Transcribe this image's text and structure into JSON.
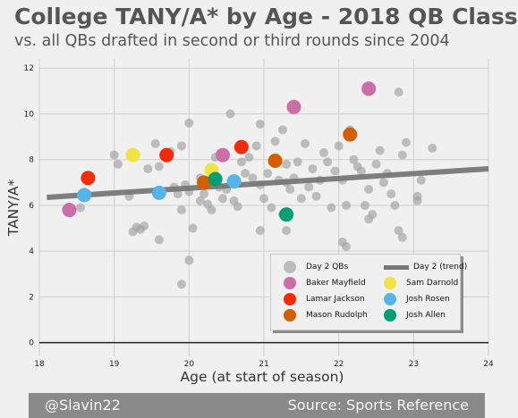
{
  "title": "College TANY/A* by Age - 2018 QB Class",
  "subtitle": "vs. all QBs drafted in second or third rounds since 2004",
  "footer": {
    "left": "@Slavin22",
    "right": "Source: Sports Reference"
  },
  "chart_data": {
    "type": "scatter",
    "xlabel": "Age (at start of season)",
    "ylabel": "TANY/A*",
    "xlim": [
      18,
      24
    ],
    "ylim": [
      -0.6,
      12.4
    ],
    "xticks": [
      18,
      19,
      20,
      21,
      22,
      23,
      24
    ],
    "yticks": [
      0,
      2,
      4,
      6,
      8,
      10,
      12
    ],
    "grid": true,
    "legend_position": "lower-right",
    "trend": {
      "name": "Day 2 (trend)",
      "color": "#777777",
      "x": [
        18.1,
        24.0
      ],
      "y": [
        6.35,
        7.6
      ]
    },
    "series": [
      {
        "name": "Day 2 QBs",
        "color": "#a0a0a0",
        "points": [
          [
            18.55,
            5.9
          ],
          [
            19.0,
            8.2
          ],
          [
            19.05,
            7.8
          ],
          [
            19.2,
            6.4
          ],
          [
            19.25,
            4.85
          ],
          [
            19.3,
            5.05
          ],
          [
            19.35,
            4.95
          ],
          [
            19.4,
            5.1
          ],
          [
            19.45,
            7.6
          ],
          [
            19.55,
            8.7
          ],
          [
            19.6,
            7.7
          ],
          [
            19.6,
            4.5
          ],
          [
            19.75,
            8.35
          ],
          [
            19.8,
            6.8
          ],
          [
            19.85,
            6.5
          ],
          [
            19.9,
            8.6
          ],
          [
            19.9,
            5.8
          ],
          [
            19.95,
            6.9
          ],
          [
            20.0,
            9.6
          ],
          [
            20.0,
            6.6
          ],
          [
            20.05,
            5.0
          ],
          [
            20.0,
            3.6
          ],
          [
            19.9,
            2.55
          ],
          [
            20.15,
            7.2
          ],
          [
            20.15,
            6.2
          ],
          [
            20.2,
            6.5
          ],
          [
            20.25,
            6.05
          ],
          [
            20.3,
            5.8
          ],
          [
            20.35,
            8.1
          ],
          [
            20.4,
            6.8
          ],
          [
            20.45,
            6.3
          ],
          [
            20.5,
            6.7
          ],
          [
            20.55,
            10.0
          ],
          [
            20.6,
            6.2
          ],
          [
            20.65,
            5.95
          ],
          [
            20.7,
            7.9
          ],
          [
            20.75,
            7.4
          ],
          [
            20.8,
            8.1
          ],
          [
            20.85,
            7.2
          ],
          [
            20.9,
            8.6
          ],
          [
            20.95,
            9.55
          ],
          [
            20.95,
            6.9
          ],
          [
            21.0,
            6.3
          ],
          [
            21.05,
            7.4
          ],
          [
            21.1,
            5.9
          ],
          [
            21.15,
            8.8
          ],
          [
            21.2,
            7.1
          ],
          [
            21.25,
            9.3
          ],
          [
            21.3,
            7.8
          ],
          [
            21.3,
            7.0
          ],
          [
            21.35,
            6.7
          ],
          [
            21.4,
            7.2
          ],
          [
            21.45,
            7.9
          ],
          [
            21.5,
            6.3
          ],
          [
            21.55,
            8.7
          ],
          [
            21.6,
            6.8
          ],
          [
            21.65,
            7.6
          ],
          [
            21.7,
            6.4
          ],
          [
            21.75,
            7.1
          ],
          [
            21.8,
            8.3
          ],
          [
            21.85,
            7.9
          ],
          [
            21.9,
            5.9
          ],
          [
            21.95,
            7.5
          ],
          [
            22.0,
            8.6
          ],
          [
            22.05,
            7.1
          ],
          [
            22.1,
            6.0
          ],
          [
            22.15,
            9.3
          ],
          [
            22.2,
            8.0
          ],
          [
            22.25,
            7.7
          ],
          [
            22.3,
            7.5
          ],
          [
            22.35,
            6.0
          ],
          [
            22.4,
            6.7
          ],
          [
            22.45,
            5.6
          ],
          [
            22.5,
            7.8
          ],
          [
            22.55,
            8.4
          ],
          [
            22.6,
            7.0
          ],
          [
            22.65,
            7.4
          ],
          [
            22.7,
            6.5
          ],
          [
            22.75,
            6.0
          ],
          [
            22.8,
            10.95
          ],
          [
            22.85,
            8.2
          ],
          [
            22.9,
            8.75
          ],
          [
            23.05,
            6.4
          ],
          [
            23.05,
            6.2
          ],
          [
            23.1,
            7.1
          ],
          [
            23.25,
            8.5
          ],
          [
            22.05,
            4.4
          ],
          [
            22.1,
            4.2
          ],
          [
            21.3,
            4.9
          ],
          [
            21.25,
            5.6
          ],
          [
            20.95,
            4.9
          ],
          [
            22.8,
            4.9
          ],
          [
            22.85,
            4.6
          ],
          [
            22.4,
            5.4
          ]
        ]
      },
      {
        "name": "Baker Mayfield",
        "color": "#cc6fa8",
        "points": [
          [
            18.4,
            5.8
          ],
          [
            20.45,
            8.2
          ],
          [
            21.4,
            10.3
          ],
          [
            22.4,
            11.1
          ]
        ]
      },
      {
        "name": "Sam Darnold",
        "color": "#f0e442",
        "points": [
          [
            19.25,
            8.2
          ],
          [
            20.3,
            7.55
          ]
        ]
      },
      {
        "name": "Lamar Jackson",
        "color": "#f52a08",
        "points": [
          [
            18.65,
            7.2
          ],
          [
            19.7,
            8.2
          ],
          [
            20.7,
            8.55
          ]
        ]
      },
      {
        "name": "Josh Rosen",
        "color": "#56b4e9",
        "points": [
          [
            18.6,
            6.45
          ],
          [
            19.6,
            6.55
          ],
          [
            20.6,
            7.05
          ]
        ]
      },
      {
        "name": "Mason Rudolph",
        "color": "#d55e00",
        "points": [
          [
            20.2,
            7.0
          ],
          [
            21.15,
            7.95
          ],
          [
            22.15,
            9.1
          ]
        ]
      },
      {
        "name": "Josh Allen",
        "color": "#009e73",
        "points": [
          [
            20.35,
            7.15
          ],
          [
            21.3,
            5.6
          ]
        ]
      }
    ]
  }
}
